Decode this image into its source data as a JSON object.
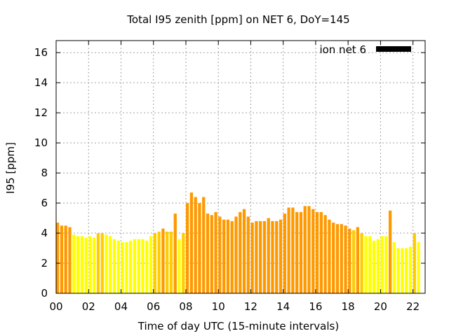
{
  "chart_data": {
    "type": "bar",
    "title": "Total I95 zenith [ppm] on NET 6, DoY=145",
    "xlabel": "Time of day UTC (15-minute intervals)",
    "ylabel": "I95 [ppm]",
    "xlim": [
      0,
      22.75
    ],
    "ylim": [
      0,
      16.8
    ],
    "xticks": [
      0,
      2,
      4,
      6,
      8,
      10,
      12,
      14,
      16,
      18,
      20,
      22
    ],
    "xtick_labels": [
      "00",
      "02",
      "04",
      "06",
      "08",
      "10",
      "12",
      "14",
      "16",
      "18",
      "20",
      "22"
    ],
    "yticks": [
      0,
      2,
      4,
      6,
      8,
      10,
      12,
      14,
      16
    ],
    "ytick_labels": [
      "0",
      "2",
      "4",
      "6",
      "8",
      "10",
      "12",
      "14",
      "16"
    ],
    "grid": true,
    "legend_position": "top-right",
    "bar_interval_hours": 0.25,
    "colors": {
      "low": "#ffff00",
      "mid": "#ffcc00",
      "high": "#ff9900",
      "legend_swatch": "#000000",
      "grid": "#a0a0a0"
    },
    "series": [
      {
        "name": "ion net 6",
        "values": [
          4.7,
          4.5,
          4.5,
          4.4,
          3.9,
          3.8,
          3.8,
          3.7,
          3.8,
          3.7,
          4.0,
          4.0,
          3.9,
          3.8,
          3.6,
          3.5,
          3.4,
          3.4,
          3.5,
          3.6,
          3.6,
          3.6,
          3.5,
          3.8,
          4.0,
          4.1,
          4.3,
          4.1,
          4.1,
          5.3,
          3.6,
          4.0,
          6.0,
          6.7,
          6.4,
          6.0,
          6.4,
          5.3,
          5.2,
          5.4,
          5.1,
          4.9,
          4.9,
          4.8,
          5.1,
          5.4,
          5.6,
          5.1,
          4.7,
          4.8,
          4.8,
          4.8,
          5.0,
          4.8,
          4.8,
          4.9,
          5.3,
          5.7,
          5.7,
          5.4,
          5.4,
          5.8,
          5.8,
          5.6,
          5.4,
          5.4,
          5.2,
          4.9,
          4.7,
          4.6,
          4.6,
          4.5,
          4.3,
          4.2,
          4.4,
          4.0,
          3.8,
          3.8,
          3.5,
          3.6,
          3.8,
          3.8,
          5.5,
          3.4,
          3.0,
          3.0,
          3.0,
          3.1,
          4.0,
          3.4
        ]
      }
    ]
  }
}
